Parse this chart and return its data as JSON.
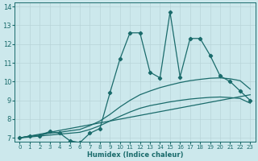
{
  "xlabel": "Humidex (Indice chaleur)",
  "xlim": [
    -0.5,
    23.5
  ],
  "ylim": [
    6.8,
    14.2
  ],
  "yticks": [
    7,
    8,
    9,
    10,
    11,
    12,
    13,
    14
  ],
  "xticks": [
    0,
    1,
    2,
    3,
    4,
    5,
    6,
    7,
    8,
    9,
    10,
    11,
    12,
    13,
    14,
    15,
    16,
    17,
    18,
    19,
    20,
    21,
    22,
    23
  ],
  "bg_color": "#cce8ec",
  "line_color": "#1a6b6b",
  "grid_color": "#b8d4d8",
  "jagged_line": {
    "x": [
      0,
      1,
      2,
      3,
      4,
      5,
      6,
      7,
      8,
      9,
      10,
      11,
      12,
      13,
      14,
      15,
      16,
      17,
      18,
      19,
      20,
      21,
      22,
      23
    ],
    "y": [
      7.0,
      7.1,
      7.1,
      7.35,
      7.25,
      6.85,
      6.75,
      7.25,
      7.5,
      9.4,
      11.2,
      12.6,
      12.6,
      10.5,
      10.2,
      13.7,
      10.25,
      12.3,
      12.3,
      11.4,
      10.3,
      10.0,
      9.5,
      9.0
    ],
    "marker": "D",
    "markersize": 2.2,
    "linewidth": 0.9
  },
  "smooth_line1": {
    "x": [
      0,
      1,
      2,
      3,
      4,
      5,
      6,
      7,
      8,
      9,
      10,
      11,
      12,
      13,
      14,
      15,
      16,
      17,
      18,
      19,
      20,
      21,
      22,
      23
    ],
    "y": [
      7.0,
      7.05,
      7.1,
      7.15,
      7.2,
      7.25,
      7.3,
      7.45,
      7.65,
      7.9,
      8.15,
      8.38,
      8.58,
      8.72,
      8.82,
      8.92,
      9.0,
      9.07,
      9.12,
      9.16,
      9.18,
      9.15,
      9.1,
      8.85
    ],
    "linewidth": 0.9
  },
  "smooth_line2": {
    "x": [
      0,
      1,
      2,
      3,
      4,
      5,
      6,
      7,
      8,
      9,
      10,
      11,
      12,
      13,
      14,
      15,
      16,
      17,
      18,
      19,
      20,
      21,
      22,
      23
    ],
    "y": [
      7.0,
      7.1,
      7.15,
      7.25,
      7.3,
      7.38,
      7.45,
      7.65,
      7.9,
      8.25,
      8.65,
      9.0,
      9.3,
      9.5,
      9.68,
      9.82,
      9.95,
      10.05,
      10.12,
      10.18,
      10.2,
      10.15,
      10.05,
      9.6
    ],
    "linewidth": 0.9
  },
  "straight_line": {
    "x": [
      0,
      23
    ],
    "y": [
      7.0,
      9.3
    ],
    "linewidth": 0.9
  }
}
